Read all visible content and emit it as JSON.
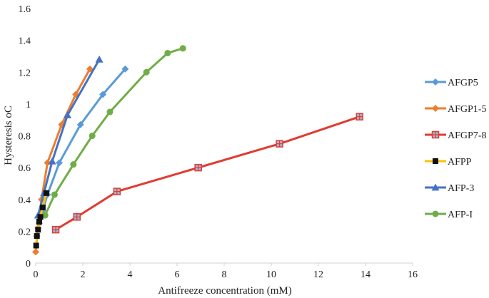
{
  "chart_data": {
    "type": "line",
    "title": "",
    "xlabel": "Antifreeze concentration (mM)",
    "ylabel": "Hysteresis oC",
    "xlim": [
      0,
      16
    ],
    "ylim": [
      0,
      1.6
    ],
    "xticks": [
      0,
      2,
      4,
      6,
      8,
      10,
      12,
      14,
      16
    ],
    "yticks": [
      0,
      0.2,
      0.4,
      0.6,
      0.8,
      1,
      1.2,
      1.4,
      1.6
    ],
    "xtick_labels": [
      "0",
      "2",
      "4",
      "6",
      "8",
      "10",
      "12",
      "14",
      "16"
    ],
    "ytick_labels": [
      "0",
      "0.2",
      "0.4",
      "0.6",
      "0.8",
      "1",
      "1.2",
      "1.4",
      "1.6"
    ],
    "grid": false,
    "legend_position": "right",
    "series": [
      {
        "name": "AFGP5",
        "color": "#5b9bd5",
        "marker": "diamond",
        "x": [
          0.05,
          0.15,
          0.3,
          0.5,
          1.0,
          1.9,
          2.85,
          3.8
        ],
        "y": [
          0.17,
          0.25,
          0.33,
          0.43,
          0.63,
          0.87,
          1.06,
          1.22
        ]
      },
      {
        "name": "AFGP1-5",
        "color": "#ed7d31",
        "marker": "diamond",
        "x": [
          0.0,
          0.1,
          0.25,
          0.5,
          1.1,
          1.7,
          2.3
        ],
        "y": [
          0.07,
          0.22,
          0.4,
          0.63,
          0.87,
          1.06,
          1.22
        ]
      },
      {
        "name": "AFGP7-8",
        "color": "#e03c31",
        "marker": "square-striped",
        "x": [
          0.85,
          1.75,
          3.45,
          6.9,
          10.35,
          13.75
        ],
        "y": [
          0.21,
          0.29,
          0.45,
          0.6,
          0.75,
          0.92
        ]
      },
      {
        "name": "AFPP",
        "color": "#ffc000",
        "marker": "square-black",
        "x": [
          0.02,
          0.05,
          0.1,
          0.15,
          0.2,
          0.3,
          0.45
        ],
        "y": [
          0.11,
          0.17,
          0.21,
          0.26,
          0.29,
          0.35,
          0.44
        ]
      },
      {
        "name": "AFP-3",
        "color": "#4472c4",
        "marker": "triangle",
        "x": [
          0.1,
          0.35,
          0.7,
          1.35,
          2.7
        ],
        "y": [
          0.3,
          0.44,
          0.64,
          0.93,
          1.28
        ]
      },
      {
        "name": "AFP-I",
        "color": "#70ad47",
        "marker": "circle",
        "x": [
          0.4,
          0.8,
          1.6,
          2.4,
          3.15,
          4.7,
          5.6,
          6.25
        ],
        "y": [
          0.3,
          0.43,
          0.62,
          0.8,
          0.95,
          1.2,
          1.32,
          1.35
        ]
      }
    ]
  }
}
